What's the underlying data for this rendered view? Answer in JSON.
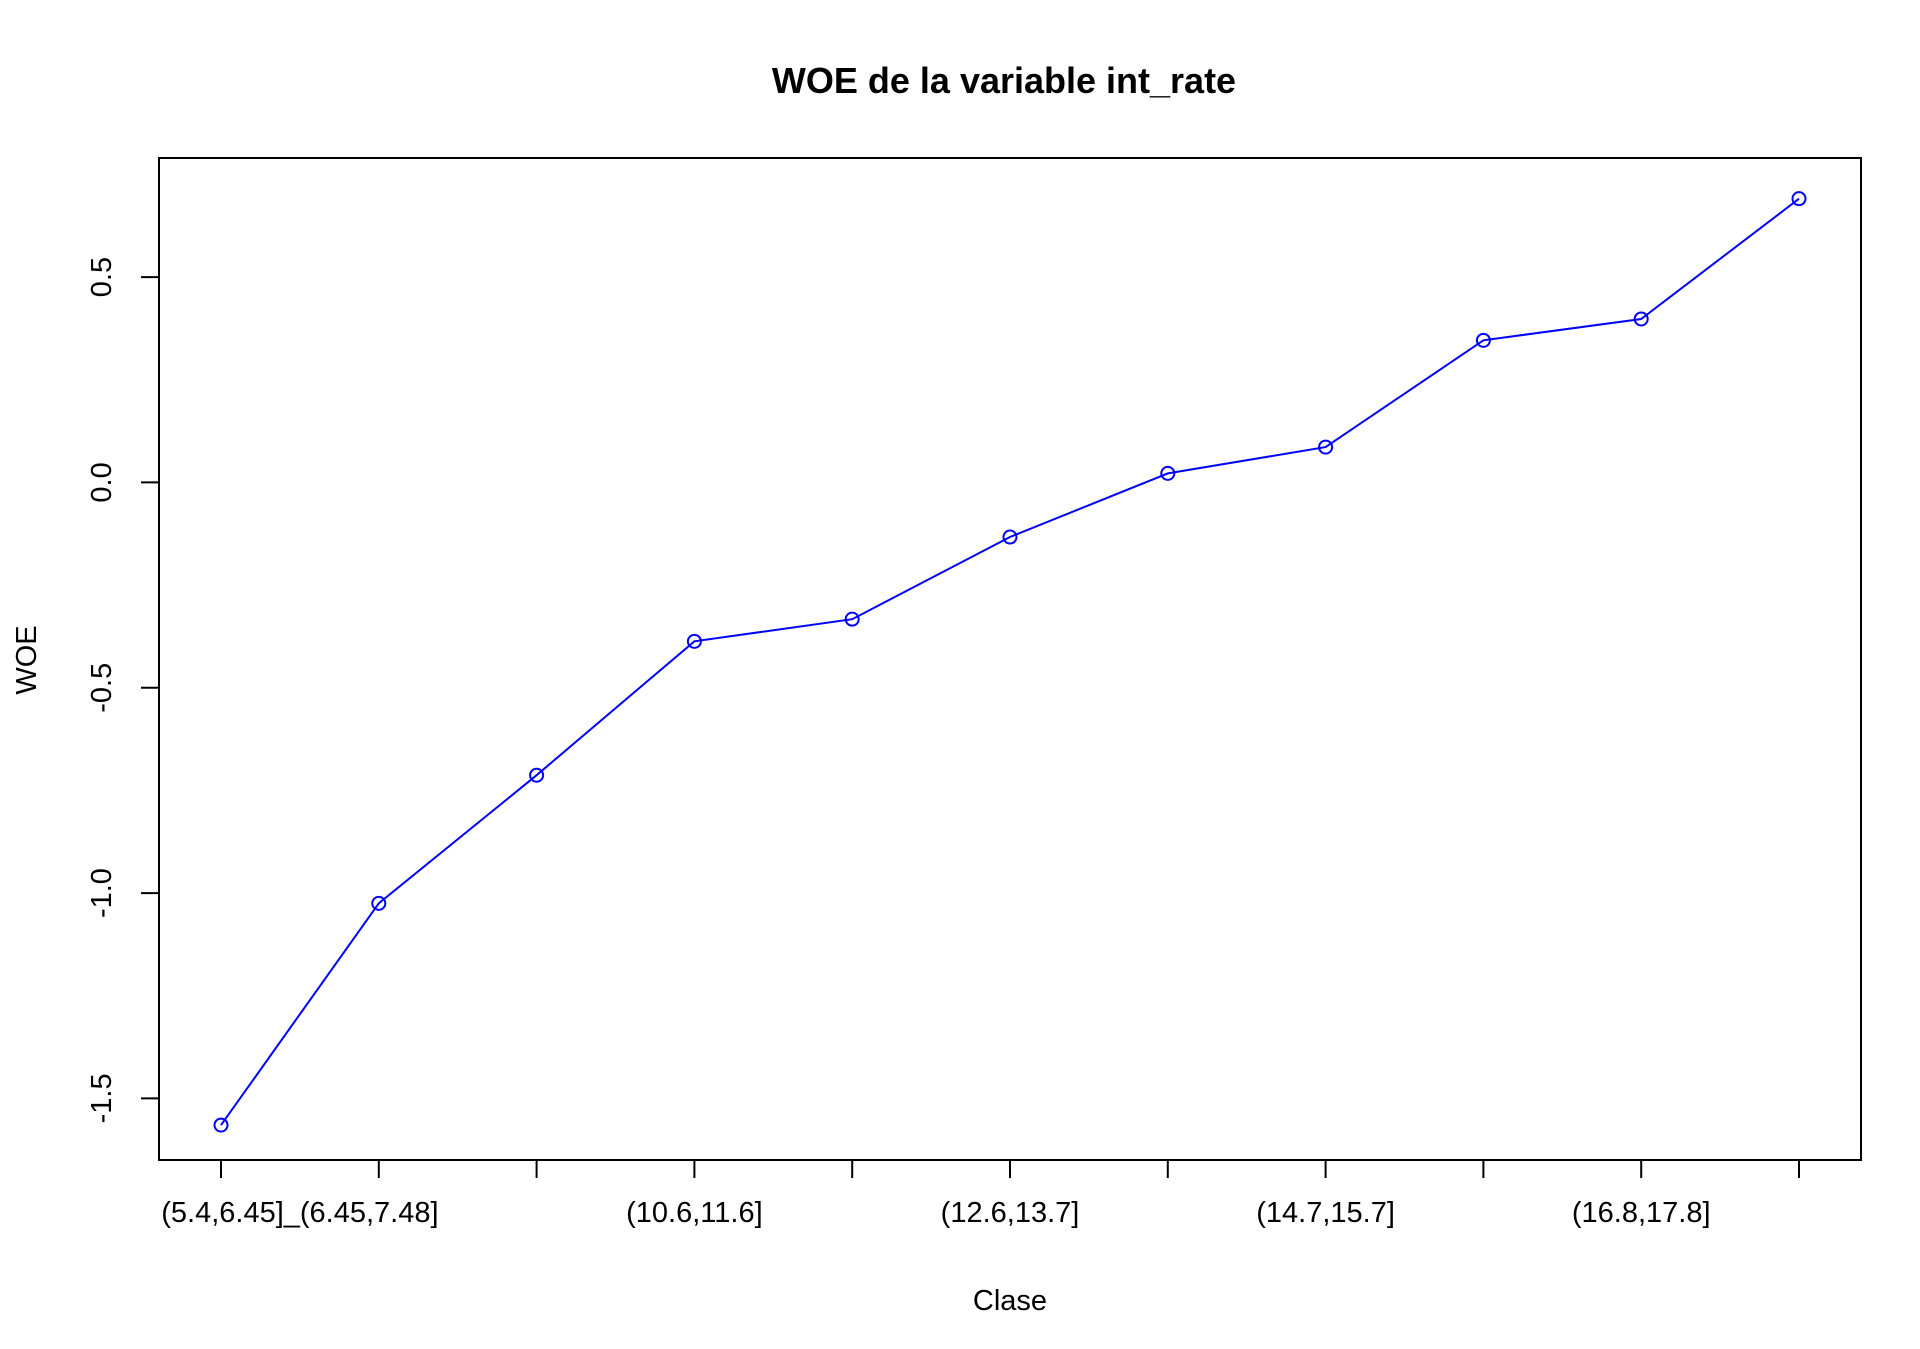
{
  "chart_data": {
    "type": "line",
    "title": "WOE de la variable int_rate",
    "xlabel": "Clase",
    "ylabel": "WOE",
    "x_tick_labels": [
      "(5.4,6.45]_(6.45,7.48]",
      "(10.6,11.6]",
      "(12.6,13.7]",
      "(14.7,15.7]",
      "(16.8,17.8]"
    ],
    "y_ticks": [
      -1.5,
      -1.0,
      -0.5,
      0.0,
      0.5
    ],
    "y_tick_labels": [
      "-1.5",
      "-1.0",
      "-0.5",
      "0.0",
      "0.5"
    ],
    "x_range": [
      1,
      11
    ],
    "ylim": [
      -1.65,
      0.79
    ],
    "grid": false,
    "series": [
      {
        "color": "#0000ff",
        "x": [
          1,
          2,
          3,
          4,
          5,
          6,
          7,
          8,
          9,
          10,
          11
        ],
        "values": [
          -1.565,
          -1.025,
          -0.713,
          -0.387,
          -0.333,
          -0.133,
          0.022,
          0.086,
          0.346,
          0.398,
          0.691
        ]
      }
    ]
  }
}
